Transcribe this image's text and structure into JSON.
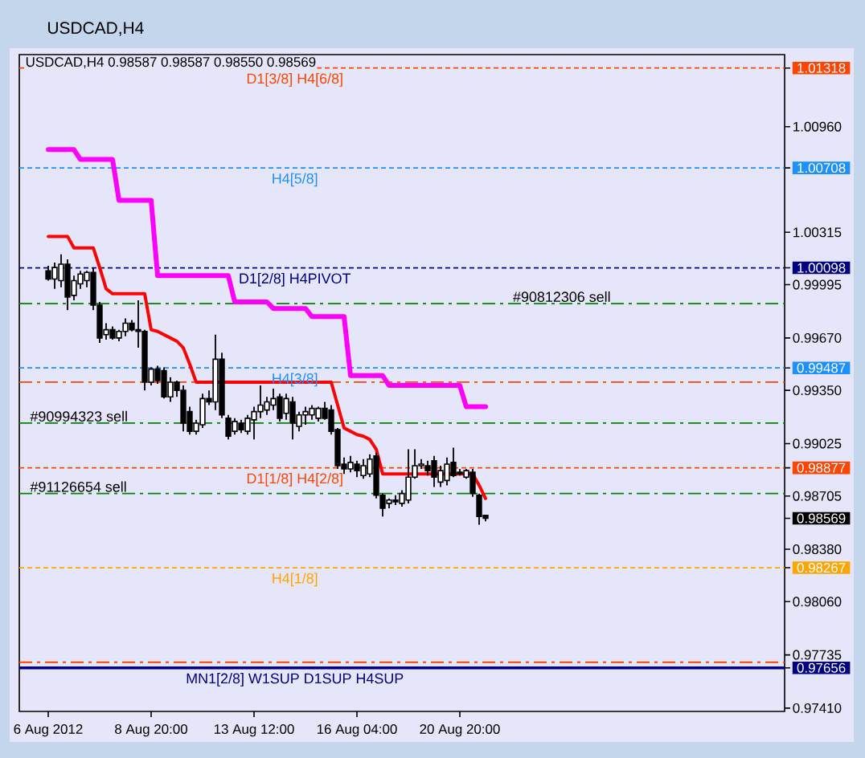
{
  "chart_data": {
    "type": "candlestick",
    "title": "USDCAD,H4",
    "subtitle": "USDCAD,H4 0.98587 0.98587 0.98550 0.98569",
    "categories": [
      null,
      null,
      null,
      null,
      "6 Aug 2012",
      null,
      null,
      null,
      null,
      null,
      null,
      null,
      null,
      null,
      null,
      null,
      null,
      null,
      null,
      null,
      "8 Aug 20:00",
      null,
      null,
      null,
      null,
      null,
      null,
      null,
      null,
      null,
      null,
      null,
      null,
      null,
      null,
      null,
      "13 Aug 12:00",
      null,
      null,
      null,
      null,
      null,
      null,
      null,
      null,
      null,
      null,
      null,
      null,
      null,
      null,
      null,
      "16 Aug 04:00",
      null,
      null,
      null,
      null,
      null,
      null,
      null,
      null,
      null,
      null,
      null,
      null,
      null,
      null,
      null,
      "20 Aug 20:00",
      null,
      null,
      null,
      null,
      null,
      null,
      null,
      null,
      null,
      null,
      null,
      null,
      null,
      null,
      null,
      null,
      null,
      null,
      null,
      null,
      null,
      null,
      null,
      null,
      null,
      null,
      null,
      null,
      null,
      null,
      null,
      null,
      null,
      null,
      null,
      null,
      null,
      null,
      null,
      null,
      null,
      null,
      null,
      null,
      null,
      null,
      null,
      null,
      null,
      null
    ],
    "ohlc": [
      null,
      null,
      null,
      null,
      [
        1.0008,
        1.0011,
        1.0002,
        1.0003
      ],
      [
        1.0003,
        1.0013,
        0.9997,
        1.001
      ],
      [
        1.0002,
        1.0018,
        0.9998,
        1.0012
      ],
      [
        1.0012,
        1.0015,
        0.9984,
        0.9992
      ],
      [
        0.9993,
        1.0005,
        0.999,
        1.0002
      ],
      [
        1.0,
        1.0008,
        0.9997,
        1.0006
      ],
      [
        1.0002,
        1.0008,
        0.9998,
        1.0007
      ],
      [
        1.0007,
        1.001,
        0.9984,
        0.9987
      ],
      [
        0.9987,
        0.9989,
        0.9964,
        0.9967
      ],
      [
        0.9969,
        0.9976,
        0.9966,
        0.9972
      ],
      [
        0.9972,
        0.9974,
        0.9966,
        0.9967
      ],
      [
        0.9967,
        0.9972,
        0.9965,
        0.9971
      ],
      [
        0.9971,
        0.9979,
        0.9968,
        0.9976
      ],
      [
        0.9976,
        0.9978,
        0.9971,
        0.9972
      ],
      [
        0.9972,
        0.999,
        0.9961,
        0.9971
      ],
      [
        0.9971,
        0.9972,
        0.9935,
        0.994
      ],
      [
        0.994,
        0.9949,
        0.9938,
        0.9948
      ],
      [
        0.9948,
        0.995,
        0.9939,
        0.9941
      ],
      [
        0.9947,
        0.9949,
        0.993,
        0.9931
      ],
      [
        0.9931,
        0.9943,
        0.9928,
        0.994
      ],
      [
        0.994,
        0.9941,
        0.9931,
        0.9935
      ],
      [
        0.9935,
        0.9938,
        0.991,
        0.9915
      ],
      [
        0.9922,
        0.9925,
        0.9908,
        0.991
      ],
      [
        0.991,
        0.9917,
        0.9908,
        0.9915
      ],
      [
        0.9914,
        0.9933,
        0.9912,
        0.993
      ],
      [
        0.993,
        0.9935,
        0.9926,
        0.9928
      ],
      [
        0.9928,
        0.9969,
        0.9923,
        0.9954
      ],
      [
        0.9954,
        0.9958,
        0.9918,
        0.992
      ],
      [
        0.9918,
        0.992,
        0.9905,
        0.9907
      ],
      [
        0.991,
        0.9918,
        0.9908,
        0.9916
      ],
      [
        0.9915,
        0.9917,
        0.9909,
        0.9911
      ],
      [
        0.991,
        0.992,
        0.9908,
        0.9918
      ],
      [
        0.9917,
        0.9925,
        0.9905,
        0.9922
      ],
      [
        0.9922,
        0.9938,
        0.9918,
        0.9926
      ],
      [
        0.9923,
        0.9931,
        0.992,
        0.9928
      ],
      [
        0.9926,
        0.9936,
        0.9923,
        0.993
      ],
      [
        0.9931,
        0.9933,
        0.9916,
        0.9918
      ],
      [
        0.9921,
        0.9933,
        0.9917,
        0.993
      ],
      [
        0.9928,
        0.9931,
        0.9905,
        0.9915
      ],
      [
        0.9913,
        0.9922,
        0.991,
        0.992
      ],
      [
        0.992,
        0.9925,
        0.9914,
        0.9922
      ],
      [
        0.992,
        0.9926,
        0.9917,
        0.9924
      ],
      [
        0.9918,
        0.9925,
        0.9916,
        0.9924
      ],
      [
        0.9924,
        0.9928,
        0.9917,
        0.9918
      ],
      [
        0.9923,
        0.9926,
        0.9908,
        0.991
      ],
      [
        0.9911,
        0.9912,
        0.9887,
        0.9889
      ],
      [
        0.989,
        0.9894,
        0.9884,
        0.9887
      ],
      [
        0.9887,
        0.9895,
        0.9885,
        0.9891
      ],
      [
        0.989,
        0.9892,
        0.9882,
        0.9886
      ],
      [
        0.9883,
        0.9893,
        0.9881,
        0.9889
      ],
      [
        0.9884,
        0.9896,
        0.9882,
        0.9893
      ],
      [
        0.9895,
        0.9897,
        0.9869,
        0.9871
      ],
      [
        0.9871,
        0.9872,
        0.9858,
        0.9863
      ],
      [
        0.9866,
        0.9869,
        0.9863,
        0.9868
      ],
      [
        0.9868,
        0.9871,
        0.9865,
        0.9867
      ],
      [
        0.9866,
        0.9874,
        0.9864,
        0.9872
      ],
      [
        0.9868,
        0.9899,
        0.9866,
        0.9882
      ],
      [
        0.9882,
        0.9899,
        0.9881,
        0.9889
      ],
      [
        0.9889,
        0.9893,
        0.9887,
        0.989
      ],
      [
        0.9889,
        0.9892,
        0.9883,
        0.9886
      ],
      [
        0.9892,
        0.9895,
        0.9876,
        0.9882
      ],
      [
        0.9879,
        0.9889,
        0.9876,
        0.9886
      ],
      [
        0.988,
        0.9894,
        0.9877,
        0.989
      ],
      [
        0.9891,
        0.99,
        0.9882,
        0.9883
      ],
      [
        0.9885,
        0.9887,
        0.9883,
        0.9884
      ],
      [
        0.9882,
        0.9887,
        0.9881,
        0.9886
      ],
      [
        0.9885,
        0.9887,
        0.987,
        0.9872
      ],
      [
        0.9871,
        0.9872,
        0.9853,
        0.9858
      ],
      [
        0.98587,
        0.98587,
        0.9855,
        0.98569
      ],
      null,
      null,
      null,
      null,
      null,
      null,
      null,
      null,
      null,
      null,
      null,
      null,
      null,
      null,
      null,
      null,
      null,
      null,
      null,
      null,
      null,
      null,
      null,
      null,
      null,
      null,
      null,
      null,
      null,
      null,
      null,
      null,
      null,
      null,
      null,
      null,
      null,
      null,
      null,
      null,
      null,
      null,
      null,
      null,
      null,
      null
    ],
    "series": [
      {
        "type": "line",
        "color": "#ff0000",
        "values": [
          null,
          null,
          null,
          null,
          1.0029,
          1.0029,
          1.0029,
          1.0029,
          1.0022,
          1.0022,
          1.0022,
          1.0022,
          1.001,
          0.9997,
          0.9994,
          0.9994,
          0.9994,
          0.9994,
          0.9994,
          0.9994,
          0.9972,
          0.9971,
          0.9969,
          0.9967,
          0.9965,
          0.9961,
          0.9951,
          0.994,
          0.994,
          0.994,
          0.994,
          0.994,
          0.994,
          0.994,
          0.994,
          0.994,
          0.994,
          0.994,
          0.994,
          0.994,
          0.994,
          0.994,
          0.994,
          0.994,
          0.994,
          0.994,
          0.994,
          0.994,
          0.994,
          0.9926,
          0.9912,
          0.991,
          0.9908,
          0.9907,
          0.9905,
          0.9899,
          0.9884,
          0.9884,
          0.9884,
          0.9884,
          0.9884,
          0.9884,
          0.9884,
          0.9884,
          0.9884,
          0.9884,
          0.9884,
          0.9884,
          0.9884,
          0.9884,
          0.9884,
          0.9877,
          0.9869,
          null,
          null,
          null,
          null,
          null,
          null,
          null,
          null,
          null,
          null,
          null,
          null,
          null,
          null,
          null,
          null,
          null,
          null,
          null,
          null,
          null,
          null,
          null,
          null,
          null,
          null,
          null,
          null,
          null,
          null,
          null,
          null,
          null,
          null,
          null,
          null,
          null,
          null,
          null,
          null,
          null,
          null,
          null,
          null,
          null,
          null
        ]
      },
      {
        "type": "line",
        "color": "#ff00ff",
        "values": [
          null,
          null,
          null,
          null,
          1.0082,
          1.0082,
          1.0082,
          1.0082,
          1.0082,
          1.0076,
          1.0076,
          1.0076,
          1.0076,
          1.0076,
          1.0076,
          1.0051,
          1.0051,
          1.0051,
          1.0051,
          1.0051,
          1.0051,
          1.0005,
          1.0005,
          1.0005,
          1.0005,
          1.0005,
          1.0005,
          1.0005,
          1.0005,
          1.0005,
          1.0005,
          1.0005,
          1.0005,
          0.9989,
          0.9989,
          0.9989,
          0.9989,
          0.9989,
          0.9989,
          0.9985,
          0.9985,
          0.9985,
          0.9985,
          0.9985,
          0.9985,
          0.998,
          0.998,
          0.998,
          0.998,
          0.998,
          0.998,
          0.9944,
          0.9944,
          0.9944,
          0.9944,
          0.9944,
          0.9944,
          0.9938,
          0.9938,
          0.9938,
          0.9938,
          0.9938,
          0.9938,
          0.9938,
          0.9938,
          0.9938,
          0.9938,
          0.9938,
          0.9938,
          0.9925,
          0.9925,
          0.9925,
          0.9925,
          null,
          null,
          null,
          null,
          null,
          null,
          null,
          null,
          null,
          null,
          null,
          null,
          null,
          null,
          null,
          null,
          null,
          null,
          null,
          null,
          null,
          null,
          null,
          null,
          null,
          null,
          null,
          null,
          null,
          null,
          null,
          null,
          null,
          null,
          null,
          null,
          null,
          null,
          null,
          null,
          null,
          null,
          null,
          null,
          null,
          null
        ]
      }
    ],
    "ylim": [
      0.9739,
      1.014
    ],
    "yticks": [
      {
        "value": 0.9741,
        "label": "0.97410"
      },
      0.97656,
      0.97735,
      {
        "value": 0.9806,
        "label": "0.98060"
      },
      0.98267,
      {
        "value": 0.9838,
        "label": "0.98380"
      },
      0.98569,
      0.98705,
      0.98877,
      0.99025,
      {
        "value": 0.9935,
        "label": "0.99350"
      },
      0.99487,
      {
        "value": 0.9967,
        "label": "0.99670"
      },
      0.99995,
      1.00098,
      1.00315,
      1.00708,
      {
        "value": 1.0096,
        "label": "1.00960"
      },
      1.01318
    ],
    "ref_lines": [
      {
        "axis": "y",
        "value": 1.01318,
        "label": "D1[3/8] H4[6/8]",
        "color": "#ff4500",
        "line_style": "dotted"
      },
      {
        "axis": "y",
        "value": 1.00708,
        "label": "H4[5/8]",
        "color": "#1e90ff",
        "line_style": "dotted"
      },
      {
        "axis": "y",
        "value": 1.00098,
        "label": "D1[2/8] H4PIVOT",
        "color": "#000080",
        "line_style": "dotted"
      },
      {
        "axis": "y",
        "value": 0.9988,
        "label": "#90812306 sell",
        "color": "#008000",
        "line_style": "dashdot"
      },
      {
        "axis": "y",
        "value": 0.99487,
        "label": "H4[3/8]",
        "color": "#1e90ff",
        "line_style": "dotted"
      },
      {
        "axis": "y",
        "value": 0.994,
        "color": "#ff4500",
        "line_style": "dashdot"
      },
      {
        "axis": "y",
        "value": 0.9915,
        "label": "#90994323 sell",
        "color": "#008000",
        "line_style": "dashdot"
      },
      {
        "axis": "y",
        "value": 0.98877,
        "label": "D1[1/8] H4[2/8]",
        "color": "#ff4500",
        "line_style": "dotted"
      },
      {
        "axis": "y",
        "value": 0.9872,
        "label": "#91126654 sell",
        "color": "#008000",
        "line_style": "dashdot"
      },
      {
        "axis": "y",
        "value": 0.98267,
        "label": "H4[1/8]",
        "color": "#ffa500",
        "line_style": "dotted"
      },
      {
        "axis": "y",
        "value": 0.9769,
        "color": "#ff4500",
        "line_style": "dashdot"
      },
      {
        "axis": "y",
        "value": 0.97656,
        "label": "MN1[2/8] W1SUP D1SUP H4SUP",
        "color": "#000080",
        "line_style": "solid"
      }
    ]
  }
}
